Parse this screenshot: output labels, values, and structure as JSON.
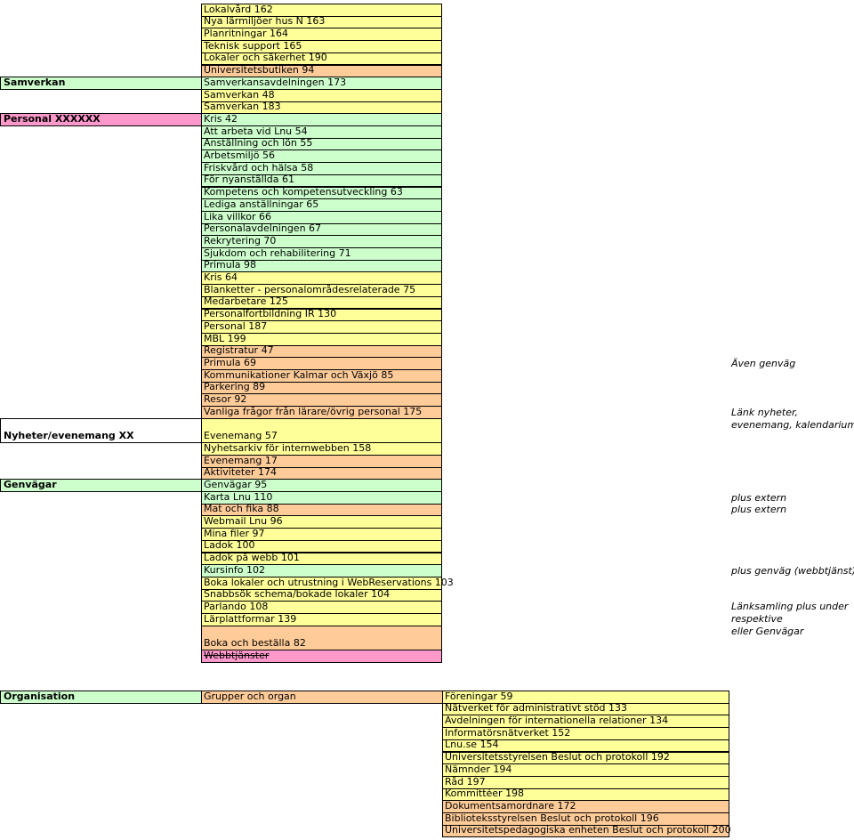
{
  "colors": {
    "yellow": "#ffff99",
    "green": "#ccffcc",
    "orange": "#ffcc99",
    "pink": "#ff99cc"
  },
  "main_items": [
    {
      "label": "Lokalvård 162",
      "color": "y"
    },
    {
      "label": "Nya lärmiljöer hus N 163",
      "color": "y"
    },
    {
      "label": "Planritningar 164",
      "color": "y"
    },
    {
      "label": "Teknisk support 165",
      "color": "y"
    },
    {
      "label": "Lokaler och säkerhet 190",
      "color": "y"
    },
    {
      "label": "Universitetsbutiken 94",
      "color": "o"
    },
    {
      "label": "Samverkansavdelningen 173",
      "color": "g"
    },
    {
      "label": "Samverkan 48",
      "color": "y"
    },
    {
      "label": "Samverkan 183",
      "color": "y"
    },
    {
      "label": "Kris 42",
      "color": "g"
    },
    {
      "label": "Att arbeta vid Lnu 54",
      "color": "g"
    },
    {
      "label": "Anställning och lön 55",
      "color": "g"
    },
    {
      "label": "Arbetsmiljö 56",
      "color": "g"
    },
    {
      "label": "Friskvård och hälsa 58",
      "color": "g"
    },
    {
      "label": "För nyanställda 61",
      "color": "g"
    },
    {
      "label": "Kompetens och kompetensutveckling 63",
      "color": "g"
    },
    {
      "label": "Lediga anställningar 65",
      "color": "g"
    },
    {
      "label": "Lika villkor 66",
      "color": "g"
    },
    {
      "label": "Personalavdelningen 67",
      "color": "g"
    },
    {
      "label": "Rekrytering 70",
      "color": "g"
    },
    {
      "label": "Sjukdom och rehabilitering 71",
      "color": "g"
    },
    {
      "label": "Primula 98",
      "color": "g"
    },
    {
      "label": "Kris 64",
      "color": "y"
    },
    {
      "label": "Blanketter - personalområdesrelaterade 75",
      "color": "y"
    },
    {
      "label": "Medarbetare 125",
      "color": "y"
    },
    {
      "label": "Personalfortbildning IR 130",
      "color": "y"
    },
    {
      "label": "Personal 187",
      "color": "y"
    },
    {
      "label": "MBL 199",
      "color": "y"
    },
    {
      "label": "Registratur 47",
      "color": "o"
    },
    {
      "label": "Primula 69",
      "color": "o"
    },
    {
      "label": "Kommunikationer Kalmar och Växjö 85",
      "color": "o"
    },
    {
      "label": "Parkering 89",
      "color": "o"
    },
    {
      "label": "Resor 92",
      "color": "o"
    },
    {
      "label": "Vanliga frågor från lärare/övrig personal 175",
      "color": "o"
    },
    {
      "label": "Evenemang 57",
      "color": "y",
      "rows": 2
    },
    {
      "label": "Nyhetsarkiv för internwebben 158",
      "color": "y"
    },
    {
      "label": "Evenemang 17",
      "color": "o"
    },
    {
      "label": "Aktiviteter 174",
      "color": "o"
    },
    {
      "label": "Genvägar 95",
      "color": "g"
    },
    {
      "label": "Karta Lnu 110",
      "color": "g"
    },
    {
      "label": "Mat och fika 88",
      "color": "o"
    },
    {
      "label": "Webmail Lnu 96",
      "color": "y"
    },
    {
      "label": "Mina filer 97",
      "color": "y"
    },
    {
      "label": "Ladok 100",
      "color": "y"
    },
    {
      "label": "Ladok på webb 101",
      "color": "y"
    },
    {
      "label": "Kursinfo 102",
      "color": "g"
    },
    {
      "label": "Boka lokaler och utrustning i WebReservations 103",
      "color": "y"
    },
    {
      "label": "Snabbsök schema/bokade lokaler 104",
      "color": "y"
    },
    {
      "label": "Parlando 108",
      "color": "y"
    },
    {
      "label": "Lärplattformar 139",
      "color": "y"
    },
    {
      "label": "Boka och beställa 82",
      "color": "o",
      "rows": 2
    },
    {
      "label": "Webbtjänster",
      "color": "p",
      "strike": true
    }
  ],
  "left_items": [
    {
      "label": "Samverkan",
      "color": "g",
      "row": 6,
      "rows": 1
    },
    {
      "label": "Personal XXXXXX",
      "color": "p",
      "row": 9,
      "rows": 1
    },
    {
      "label": "Nyheter/evenemang XX",
      "color": "w",
      "row": 34,
      "rows": 2
    },
    {
      "label": "Genvägar",
      "color": "g",
      "row": 39,
      "rows": 1
    }
  ],
  "notes": [
    {
      "lines": [
        "Även genväg"
      ],
      "row": 29
    },
    {
      "lines": [
        "Länk nyheter,",
        "evenemang, kalendarium"
      ],
      "row": 34
    },
    {
      "lines": [
        "plus extern"
      ],
      "row": 40
    },
    {
      "lines": [
        "plus extern"
      ],
      "row": 41
    },
    {
      "lines": [
        "plus genväg (webbtjänst)"
      ],
      "row": 46
    },
    {
      "lines": [
        "Länksamling plus under",
        "respektive",
        "eller Genvägar"
      ],
      "row": 51
    }
  ],
  "org": {
    "label": "Organisation",
    "group": "Grupper och organ",
    "items": [
      {
        "label": "Föreningar 59",
        "color": "y"
      },
      {
        "label": "Nätverket för administrativt stöd 133",
        "color": "y"
      },
      {
        "label": "Avdelningen för internationella relationer 134",
        "color": "y"
      },
      {
        "label": "Informatörsnätverket 152",
        "color": "y"
      },
      {
        "label": "Lnu.se 154",
        "color": "y"
      },
      {
        "label": "Universitetsstyrelsen Beslut och protokoll 192",
        "color": "y"
      },
      {
        "label": "Nämnder 194",
        "color": "y"
      },
      {
        "label": "Råd 197",
        "color": "y"
      },
      {
        "label": "Kommittéer 198",
        "color": "y"
      },
      {
        "label": "Dokumentsamordnare 172",
        "color": "o"
      },
      {
        "label": "Biblioteksstyrelsen Beslut och protokoll 196",
        "color": "o"
      },
      {
        "label": "Universitetspedagogiska enheten Beslut och protokoll 200",
        "color": "o"
      }
    ]
  }
}
